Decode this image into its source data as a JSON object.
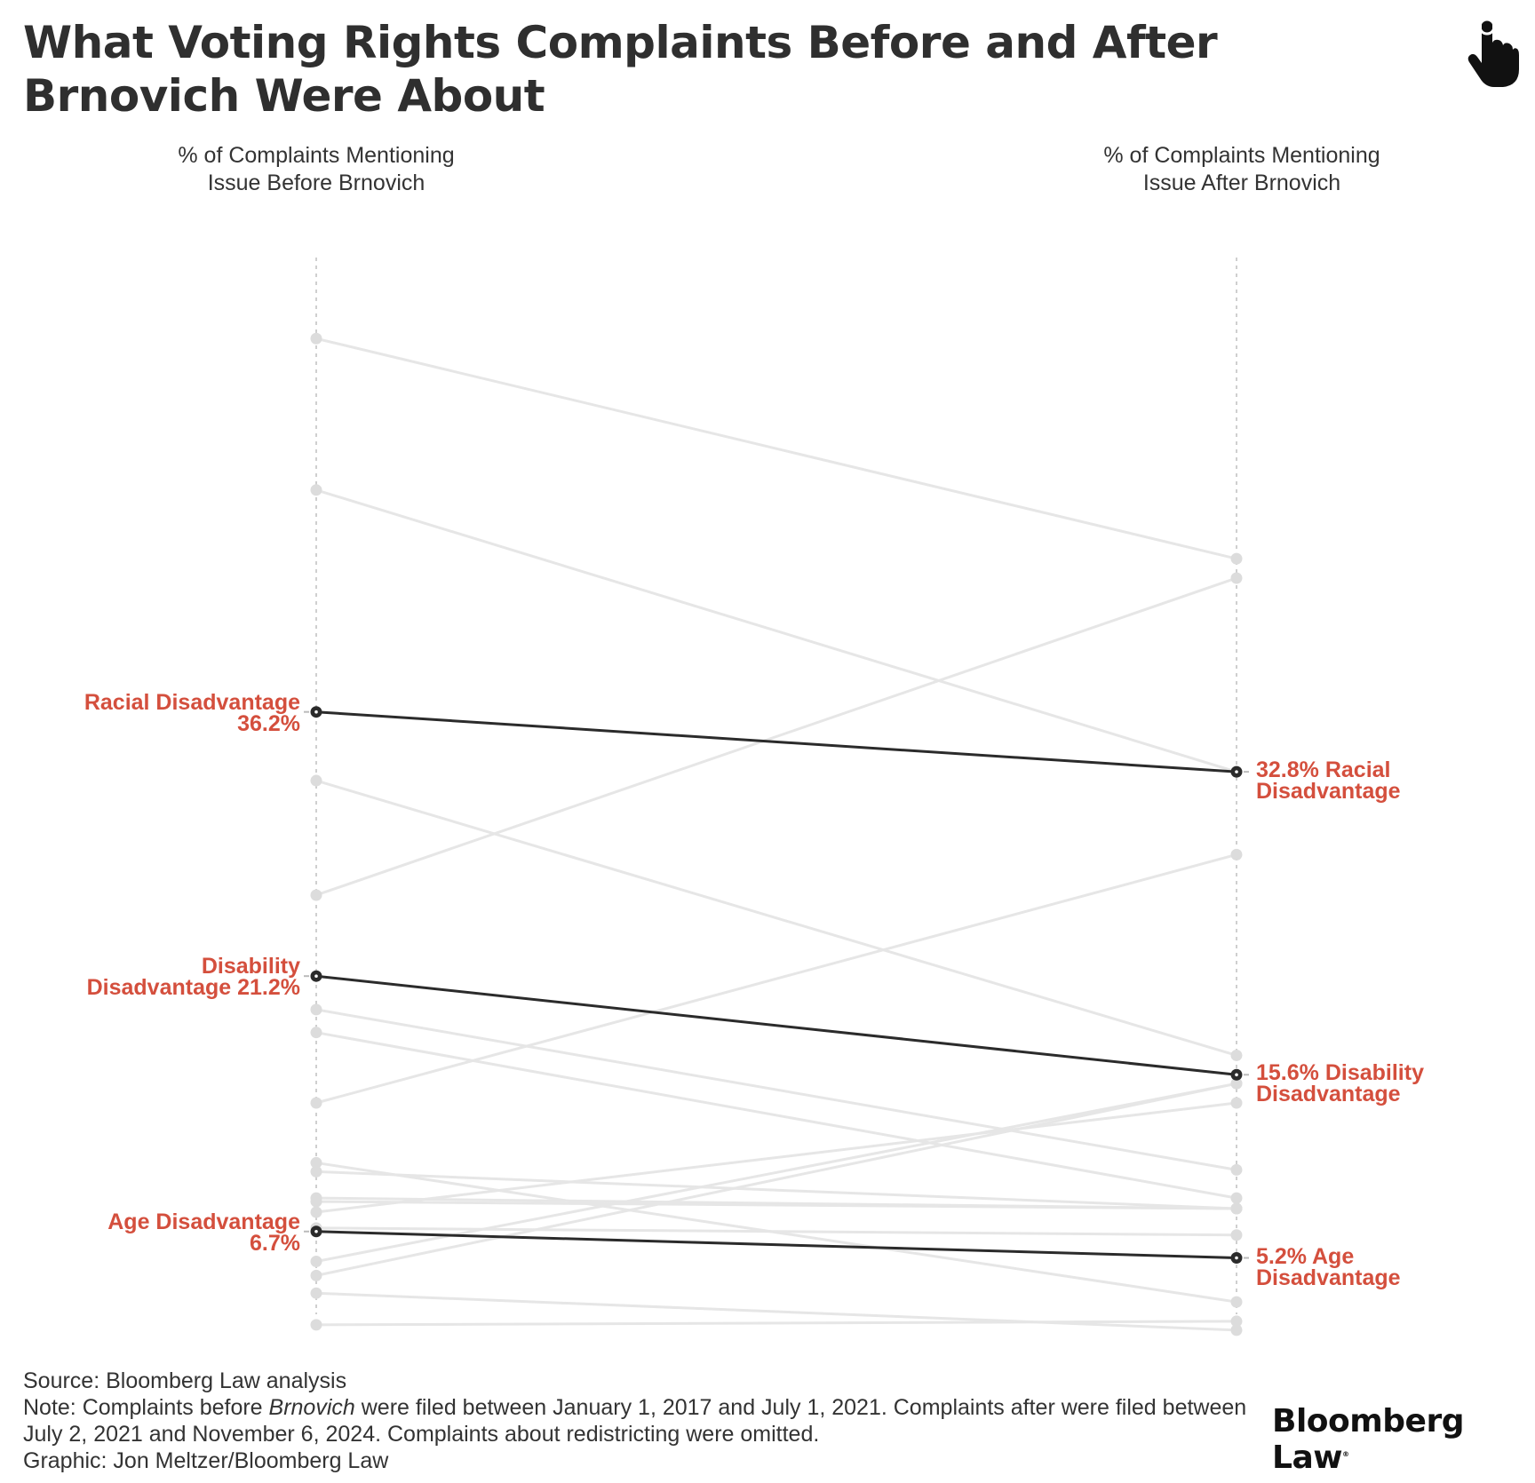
{
  "title": "What Voting Rights Complaints Before and After Brnovich Were About",
  "columns": {
    "before": "% of Complaints Mentioning Issue Before Brnovich",
    "after": "% of Complaints Mentioning Issue After Brnovich"
  },
  "chart_data": {
    "type": "slope",
    "title": "What Voting Rights Complaints Before and After Brnovich Were About",
    "xlabels": [
      "% of Complaints Mentioning Issue Before Brnovich",
      "% of Complaints Mentioning Issue After Brnovich"
    ],
    "ylim": [
      2.0,
      62.0
    ],
    "highlight_color": "#2b2b2b",
    "muted_color": "#dcdcdc",
    "label_color": "#d44f3d",
    "series": [
      {
        "name": "Racial Disadvantage",
        "before": 36.2,
        "after": 32.8,
        "highlight": true
      },
      {
        "name": "Disability Disadvantage",
        "before": 21.2,
        "after": 15.6,
        "highlight": true
      },
      {
        "name": "Age Disadvantage",
        "before": 6.7,
        "after": 5.2,
        "highlight": true
      },
      {
        "before": 57.4,
        "after": 44.9,
        "highlight": false
      },
      {
        "before": 48.8,
        "after": 32.8,
        "highlight": false
      },
      {
        "before": 32.3,
        "after": 16.7,
        "highlight": false
      },
      {
        "before": 25.8,
        "after": 43.8,
        "highlight": false
      },
      {
        "before": 19.3,
        "after": 10.2,
        "highlight": false
      },
      {
        "before": 18.0,
        "after": 8.6,
        "highlight": false
      },
      {
        "before": 14.0,
        "after": 28.1,
        "highlight": false
      },
      {
        "before": 10.6,
        "after": 2.7,
        "highlight": false
      },
      {
        "before": 10.1,
        "after": 8.0,
        "highlight": false
      },
      {
        "before": 8.6,
        "after": 8.0,
        "highlight": false
      },
      {
        "before": 8.4,
        "after": 8.0,
        "highlight": false
      },
      {
        "before": 7.8,
        "after": 14.0,
        "highlight": false
      },
      {
        "before": 6.9,
        "after": 6.5,
        "highlight": false
      },
      {
        "before": 5.0,
        "after": 15.1,
        "highlight": false
      },
      {
        "before": 4.2,
        "after": 15.1,
        "highlight": false
      },
      {
        "before": 3.2,
        "after": 1.1,
        "highlight": false
      },
      {
        "before": 1.4,
        "after": 1.6,
        "highlight": false
      }
    ],
    "labels": {
      "left": [
        {
          "line1": "Racial Disadvantage",
          "line2": "36.2%"
        },
        {
          "line1": "Disability",
          "line2": "Disadvantage 21.2%"
        },
        {
          "line1": "Age Disadvantage",
          "line2": "6.7%"
        }
      ],
      "right": [
        {
          "line1": "32.8% Racial",
          "line2": "Disadvantage"
        },
        {
          "line1": "15.6% Disability",
          "line2": "Disadvantage"
        },
        {
          "line1": "5.2% Age",
          "line2": "Disadvantage"
        }
      ]
    }
  },
  "footer": {
    "source": "Source: Bloomberg Law analysis",
    "note_prefix": "Note: Complaints before ",
    "note_italic": "Brnovich",
    "note_rest": " were filed between January 1, 2017 and July 1, 2021. Complaints after were filed between July 2, 2021 and November 6, 2024. Complaints about redistricting were omitted.",
    "graphic": "Graphic: Jon Meltzer/Bloomberg Law"
  },
  "brand": "Bloomberg Law",
  "icons": {
    "pointer": "hand-pointer-icon"
  }
}
